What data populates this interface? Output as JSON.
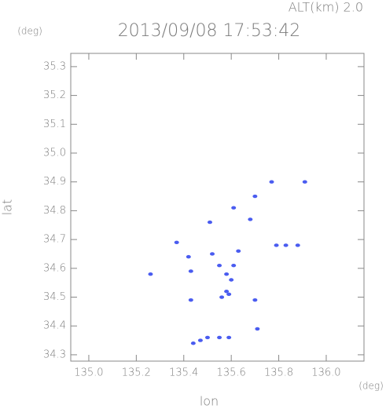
{
  "chart_data": {
    "type": "scatter",
    "title": "2013/09/08 17:53:42",
    "annotation": "ALT(km) 2.0",
    "y_unit": "(deg)",
    "x_unit": "(deg)",
    "x_label": "lon",
    "y_label": "lat",
    "color": "#4a5cf0",
    "x": [
      135.91,
      135.83,
      135.79,
      135.88,
      135.26,
      135.43,
      135.7,
      135.42,
      135.43,
      135.58,
      135.6,
      135.58,
      135.56,
      135.59,
      135.55,
      135.63,
      135.52,
      135.61,
      135.44,
      135.47,
      135.5,
      135.55,
      135.59,
      135.51,
      135.7,
      135.77,
      135.37,
      135.71,
      135.61,
      135.68
    ],
    "values": [
      34.9,
      34.68,
      34.68,
      34.68,
      34.58,
      34.49,
      34.49,
      34.64,
      34.59,
      34.58,
      34.56,
      34.52,
      34.5,
      34.51,
      34.61,
      34.66,
      34.65,
      34.61,
      34.34,
      34.35,
      34.36,
      34.36,
      34.36,
      34.76,
      34.85,
      34.9,
      34.69,
      34.39,
      34.81,
      34.77
    ],
    "xlim": [
      134.924,
      136.159
    ],
    "ylim": [
      34.278,
      35.346
    ],
    "xticks": [
      {
        "value": 135,
        "label": "135.0"
      },
      135.2,
      135.4,
      135.6,
      135.8,
      {
        "value": 136,
        "label": "136.0"
      }
    ],
    "yticks": [
      34.3,
      34.4,
      34.5,
      34.6,
      34.7,
      34.8,
      34.9,
      {
        "value": 35,
        "label": "35.0"
      },
      35.1,
      35.2,
      35.3
    ]
  }
}
